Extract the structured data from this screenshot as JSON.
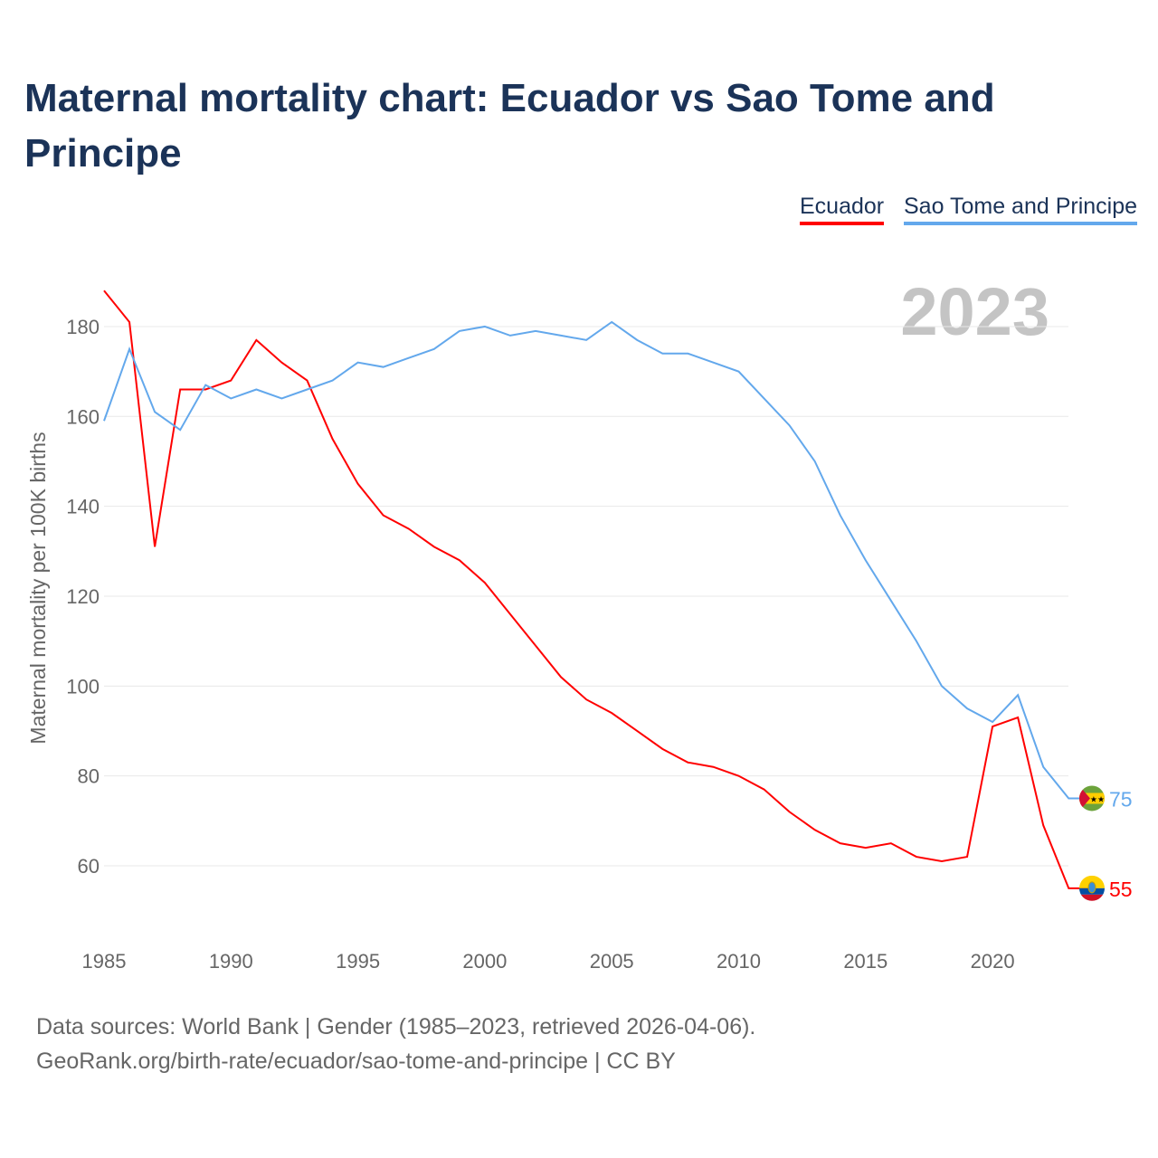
{
  "chart_data": {
    "type": "line",
    "title": "Maternal mortality chart: Ecuador vs Sao Tome and Principe",
    "ylabel": "Maternal mortality per 100K births",
    "xlabel": "",
    "year_label": "2023",
    "ylim": [
      60,
      180
    ],
    "yticks": [
      60,
      80,
      100,
      120,
      140,
      160,
      180
    ],
    "xticks": [
      1985,
      1990,
      1995,
      2000,
      2005,
      2010,
      2015,
      2020
    ],
    "x": [
      1985,
      1986,
      1987,
      1988,
      1989,
      1990,
      1991,
      1992,
      1993,
      1994,
      1995,
      1996,
      1997,
      1998,
      1999,
      2000,
      2001,
      2002,
      2003,
      2004,
      2005,
      2006,
      2007,
      2008,
      2009,
      2010,
      2011,
      2012,
      2013,
      2014,
      2015,
      2016,
      2017,
      2018,
      2019,
      2020,
      2021,
      2022,
      2023
    ],
    "series": [
      {
        "name": "Ecuador",
        "color": "#ff0000",
        "end_label": "55",
        "values": [
          188,
          181,
          131,
          166,
          166,
          168,
          177,
          172,
          168,
          155,
          145,
          138,
          135,
          131,
          128,
          123,
          116,
          109,
          102,
          97,
          94,
          90,
          86,
          83,
          82,
          80,
          77,
          72,
          68,
          65,
          64,
          65,
          62,
          61,
          62,
          91,
          93,
          69,
          55
        ]
      },
      {
        "name": "Sao Tome and Principe",
        "color": "#63a8ec",
        "end_label": "75",
        "values": [
          159,
          175,
          161,
          157,
          167,
          164,
          166,
          164,
          166,
          168,
          172,
          171,
          173,
          175,
          179,
          180,
          178,
          179,
          178,
          177,
          181,
          177,
          174,
          174,
          172,
          170,
          164,
          158,
          150,
          138,
          128,
          119,
          110,
          100,
          95,
          92,
          98,
          82,
          75
        ]
      }
    ],
    "grid": true,
    "legend": "top-right"
  },
  "footer": {
    "line1": "Data sources: World Bank | Gender (1985–2023, retrieved 2026-04-06).",
    "line2": "GeoRank.org/birth-rate/ecuador/sao-tome-and-principe | CC BY"
  }
}
